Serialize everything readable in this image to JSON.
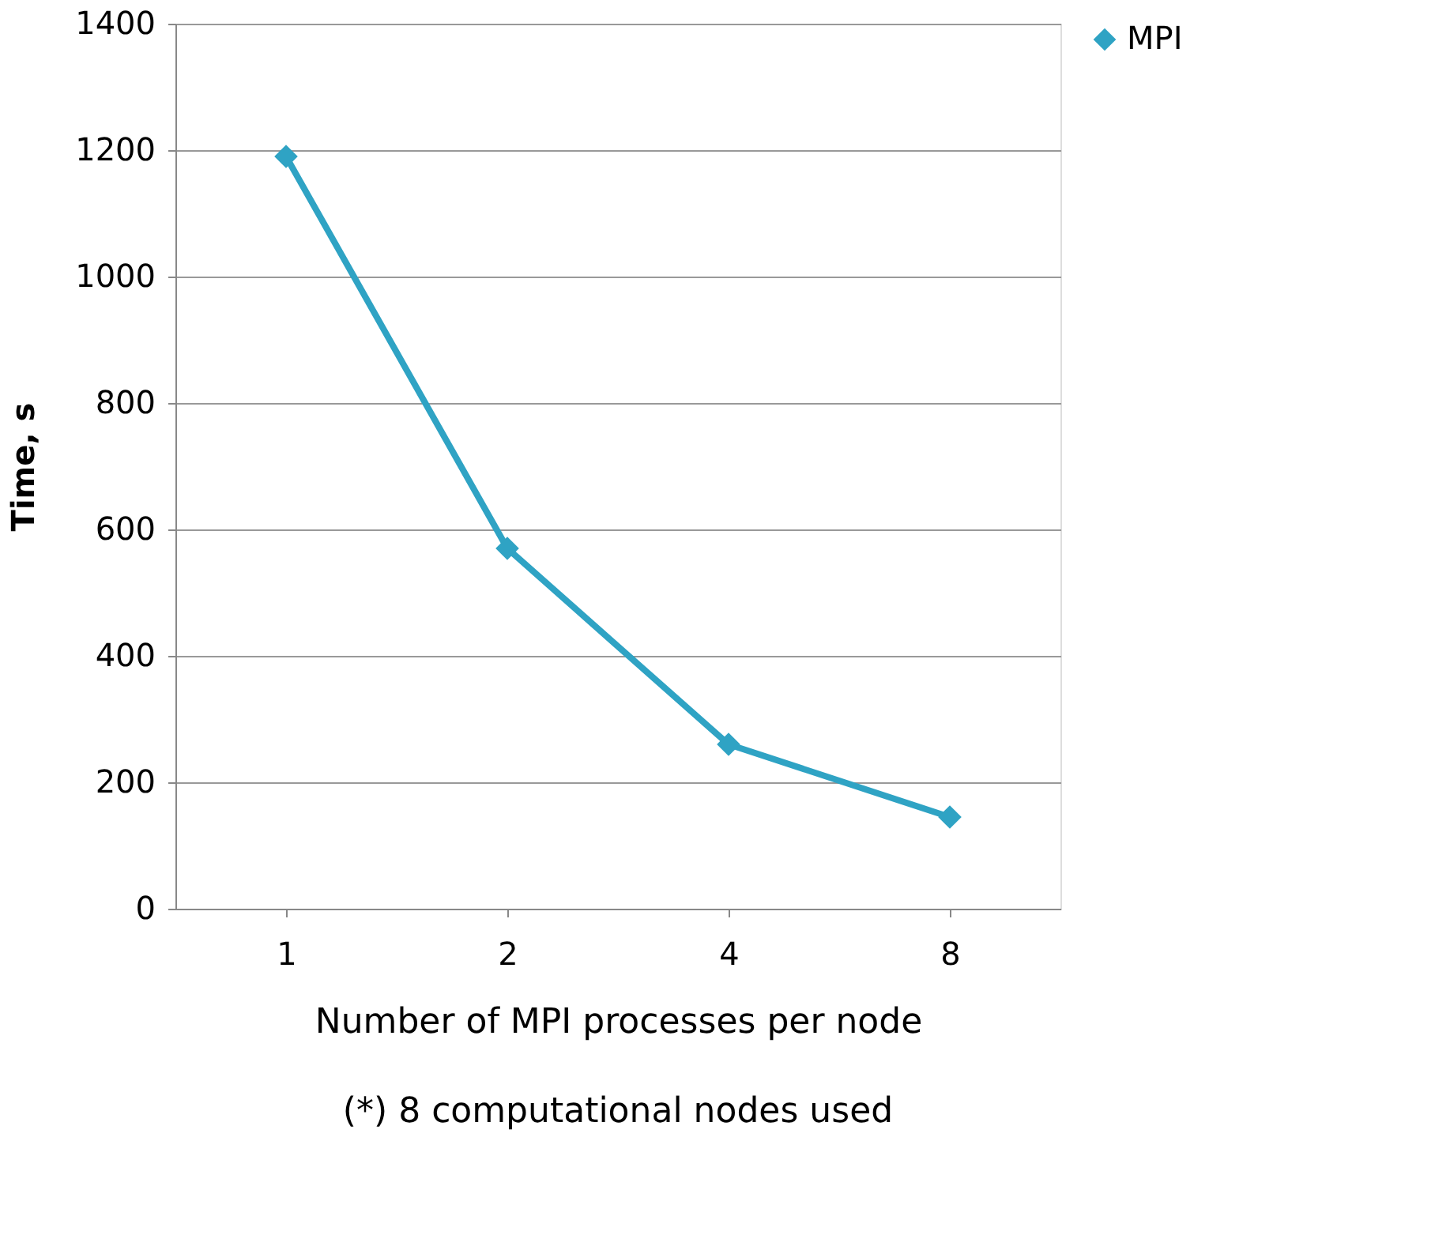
{
  "chart_data": {
    "type": "line",
    "xlabel": "Number of MPI processes per node",
    "ylabel": "Time, s",
    "annotations": [
      "(*) 8 computational nodes used"
    ],
    "categories": [
      "1",
      "2",
      "4",
      "8"
    ],
    "series": [
      {
        "name": "MPI",
        "color": "#2fa3c4",
        "values": [
          1190,
          570,
          260,
          145
        ]
      }
    ],
    "ylim": [
      0,
      1400
    ],
    "yticks": [
      0,
      200,
      400,
      600,
      800,
      1000,
      1200,
      1400
    ],
    "grid": "y",
    "legend": "right",
    "marker": "diamond",
    "line_style": "solid"
  }
}
